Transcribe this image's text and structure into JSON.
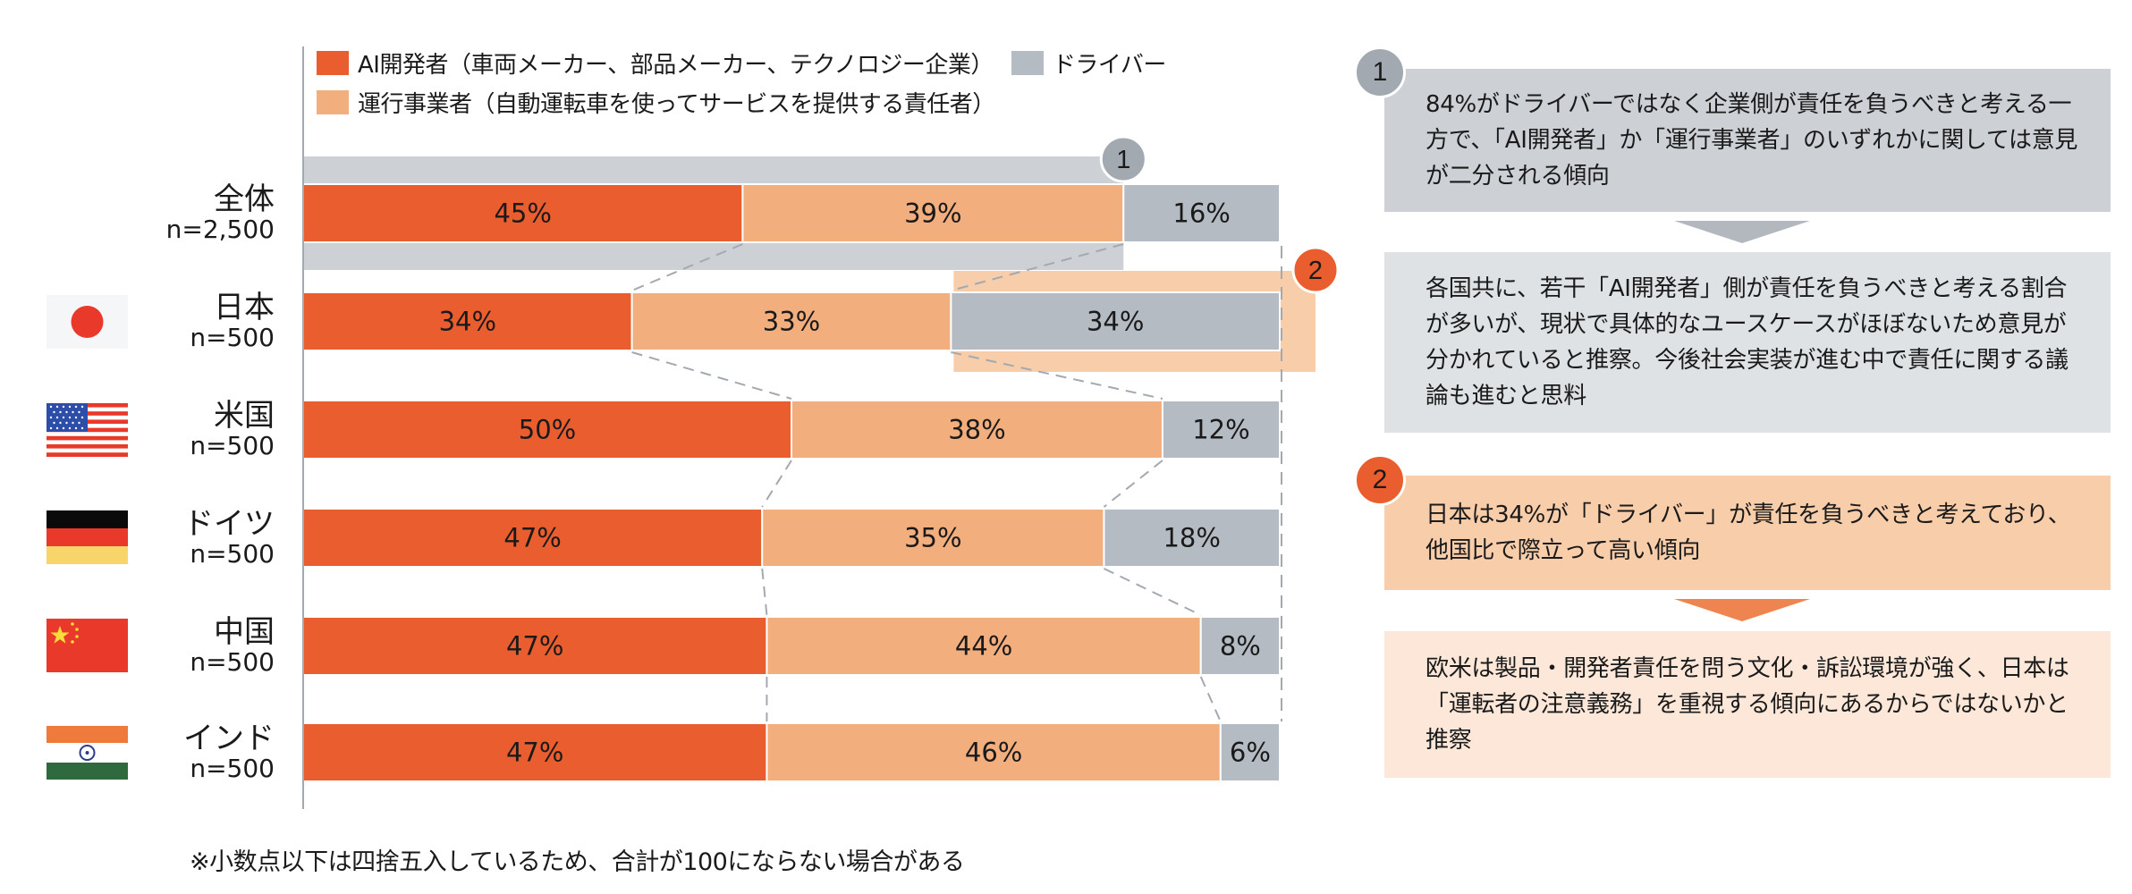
{
  "legend": [
    {
      "label": "AI開発者（車両メーカー、部品メーカー、テクノロジー企業）",
      "color": "#E95D2E"
    },
    {
      "label": "ドライバー",
      "color": "#B5BBC3"
    },
    {
      "label": "運行事業者（自動運転車を使ってサービスを提供する責任者）",
      "color": "#F3AE7E"
    }
  ],
  "chart_data": {
    "type": "bar",
    "orientation": "horizontal-stacked-100",
    "categories": [
      "全体",
      "日本",
      "米国",
      "ドイツ",
      "中国",
      "インド"
    ],
    "sample_sizes": [
      "n=2,500",
      "n=500",
      "n=500",
      "n=500",
      "n=500",
      "n=500"
    ],
    "series": [
      {
        "name": "AI開発者（車両メーカー、部品メーカー、テクノロジー企業）",
        "color": "#E95D2E",
        "values": [
          45,
          34,
          50,
          47,
          47,
          47
        ]
      },
      {
        "name": "運行事業者（自動運転車を使ってサービスを提供する責任者）",
        "color": "#F3AE7E",
        "values": [
          39,
          33,
          38,
          35,
          44,
          46
        ]
      },
      {
        "name": "ドライバー",
        "color": "#B5BBC3",
        "values": [
          16,
          34,
          12,
          18,
          8,
          6
        ]
      }
    ],
    "value_suffix": "%",
    "xlim": [
      0,
      100
    ],
    "annotations": [
      {
        "id": "1",
        "target": "全体 (AI開発者 + 運行事業者)",
        "color": "#A3A9B1"
      },
      {
        "id": "2",
        "target": "日本 (ドライバー)",
        "color": "#E95D2E"
      }
    ],
    "legend_position": "top",
    "grid": false
  },
  "flags": [
    "japan-flag",
    "usa-flag",
    "germany-flag",
    "china-flag",
    "india-flag"
  ],
  "footnote": "※小数点以下は四捨五入しているため、合計が100にならない場合がある",
  "panels": [
    {
      "badge": "1",
      "text": "84%がドライバーではなく企業側が責任を負うべきと考える一方で、「AI開発者」か「運行事業者」のいずれかに関しては意見が二分される傾向",
      "bg": "#CDD1D5"
    },
    {
      "badge": "",
      "text": "各国共に、若干「AI開発者」側が責任を負うべきと考える割合が多いが、現状で具体的なユースケースがほぼないため意見が分かれていると推察。今後社会実装が進む中で責任に関する議論も進むと思料",
      "bg": "#DFE2E5"
    },
    {
      "badge": "2",
      "text": "日本は34%が「ドライバー」が責任を負うべきと考えており、他国比で際立って高い傾向",
      "bg": "#F8CDAA"
    },
    {
      "badge": "",
      "text": "欧米は製品・開発者責任を問う文化・訴訟環境が強く、日本は「運転者の注意義務」を重視する傾向にあるからではないかと推察",
      "bg": "#FCE7D9"
    }
  ]
}
